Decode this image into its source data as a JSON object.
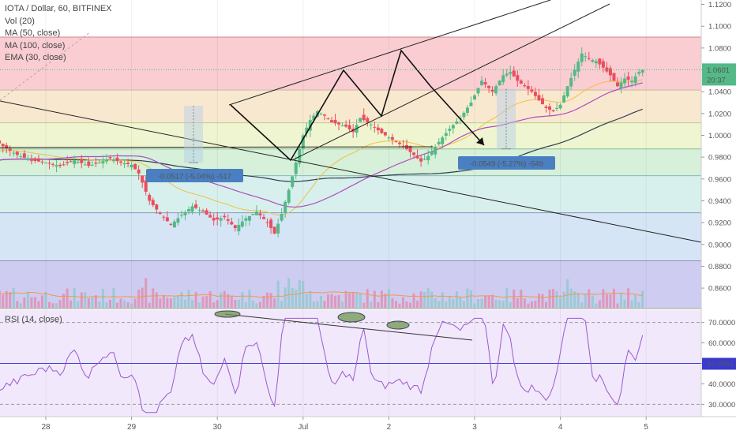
{
  "legend": {
    "title": "IOTA / Dollar, 60, BITFINEX",
    "vol": "Vol (20)",
    "ma50": "MA (50, close)",
    "ma100": "MA (100, close)",
    "ema30": "EMA (30, close)"
  },
  "rsi_label": "RSI (14, close)",
  "colors": {
    "up": "#53b987",
    "down": "#eb4d5c",
    "ma50": "#b04cc2",
    "ma100": "#2c3e50",
    "ema30": "#f0c040",
    "rsi": "#9b59d0",
    "tag": "#4a7fc1"
  },
  "chart_data": [
    {
      "type": "candlestick",
      "symbol": "IOTA / Dollar",
      "interval": "60",
      "exchange": "BITFINEX",
      "x_tick_labels": [
        "28",
        "29",
        "30",
        "Jul",
        "2",
        "3",
        "4",
        "5"
      ],
      "y_tick_labels": [
        "1.1200",
        "1.1000",
        "1.0800",
        "1.0600",
        "1.0400",
        "1.0200",
        "1.0000",
        "0.9800",
        "0.9600",
        "0.9400",
        "0.9200",
        "0.9000",
        "0.8800",
        "0.8600"
      ],
      "ylim": [
        0.842,
        1.124
      ],
      "last_price": "1.0601",
      "countdown": "20:37",
      "fib_levels": [
        1.09,
        1.0415,
        1.0115,
        0.9875,
        0.963,
        0.929,
        0.885
      ],
      "measure_annotations": [
        {
          "label": "-0.0517 (-5.04%) -517",
          "from": 1.027,
          "to": 0.975
        },
        {
          "label": "-0.0549 (-5.27%) -549",
          "from": 1.0425,
          "to": 0.9876
        }
      ],
      "series": [
        {
          "name": "MA (50, close)",
          "color": "#b04cc2"
        },
        {
          "name": "MA (100, close)",
          "color": "#2c3e50"
        },
        {
          "name": "EMA (30, close)",
          "color": "#f0c040"
        },
        {
          "name": "Vol (20)"
        }
      ]
    },
    {
      "type": "line",
      "name": "RSI (14, close)",
      "y_tick_labels": [
        "70.0000",
        "60.0000",
        "50.0000",
        "40.0000",
        "30.0000"
      ],
      "ylim": [
        24,
        76
      ],
      "current_value": "49.9961",
      "bands": [
        30,
        70
      ]
    }
  ]
}
